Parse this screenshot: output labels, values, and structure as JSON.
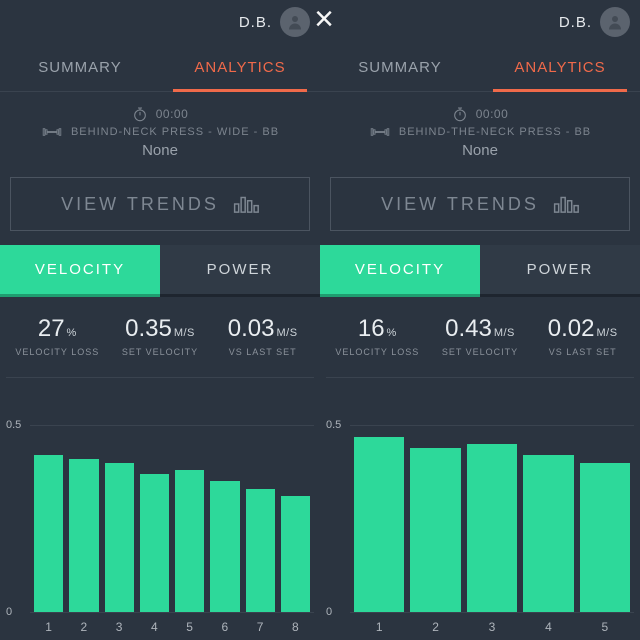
{
  "colors": {
    "bg": "#2b3440",
    "accent": "#f06a4a",
    "bar": "#2dd99a",
    "muted": "#7c848e",
    "grid": "#3a434f"
  },
  "panels": [
    {
      "user_initials": "D.B.",
      "tabs": {
        "summary": "SUMMARY",
        "analytics": "ANALYTICS",
        "active": "analytics"
      },
      "meta": {
        "timer": "00:00",
        "exercise": "BEHIND-NECK PRESS - WIDE - BB",
        "sub": "None"
      },
      "trends_label": "VIEW TRENDS",
      "subtabs": {
        "velocity": "VELOCITY",
        "power": "POWER",
        "active": "velocity"
      },
      "stats": [
        {
          "value": "27",
          "unit": "%",
          "label": "VELOCITY LOSS"
        },
        {
          "value": "0.35",
          "unit": "M/S",
          "label": "SET VELOCITY"
        },
        {
          "value": "0.03",
          "unit": "M/S",
          "label": "VS LAST SET"
        }
      ],
      "chart": {
        "type": "bar",
        "ylim": [
          0,
          0.6
        ],
        "ytick": 0.5,
        "ytick_zero": "0",
        "bar_color": "#2dd99a",
        "grid_color": "#3a434f",
        "categories": [
          "1",
          "2",
          "3",
          "4",
          "5",
          "6",
          "7",
          "8"
        ],
        "values": [
          0.42,
          0.41,
          0.4,
          0.37,
          0.38,
          0.35,
          0.33,
          0.31
        ]
      }
    },
    {
      "user_initials": "D.B.",
      "tabs": {
        "summary": "SUMMARY",
        "analytics": "ANALYTICS",
        "active": "analytics"
      },
      "meta": {
        "timer": "00:00",
        "exercise": "BEHIND-THE-NECK PRESS - BB",
        "sub": "None"
      },
      "trends_label": "VIEW TRENDS",
      "subtabs": {
        "velocity": "VELOCITY",
        "power": "POWER",
        "active": "velocity"
      },
      "stats": [
        {
          "value": "16",
          "unit": "%",
          "label": "VELOCITY LOSS"
        },
        {
          "value": "0.43",
          "unit": "M/S",
          "label": "SET VELOCITY"
        },
        {
          "value": "0.02",
          "unit": "M/S",
          "label": "VS LAST SET"
        }
      ],
      "chart": {
        "type": "bar",
        "ylim": [
          0,
          0.6
        ],
        "ytick": 0.5,
        "ytick_zero": "0",
        "bar_color": "#2dd99a",
        "grid_color": "#3a434f",
        "categories": [
          "1",
          "2",
          "3",
          "4",
          "5"
        ],
        "values": [
          0.47,
          0.44,
          0.45,
          0.42,
          0.4
        ]
      }
    }
  ]
}
